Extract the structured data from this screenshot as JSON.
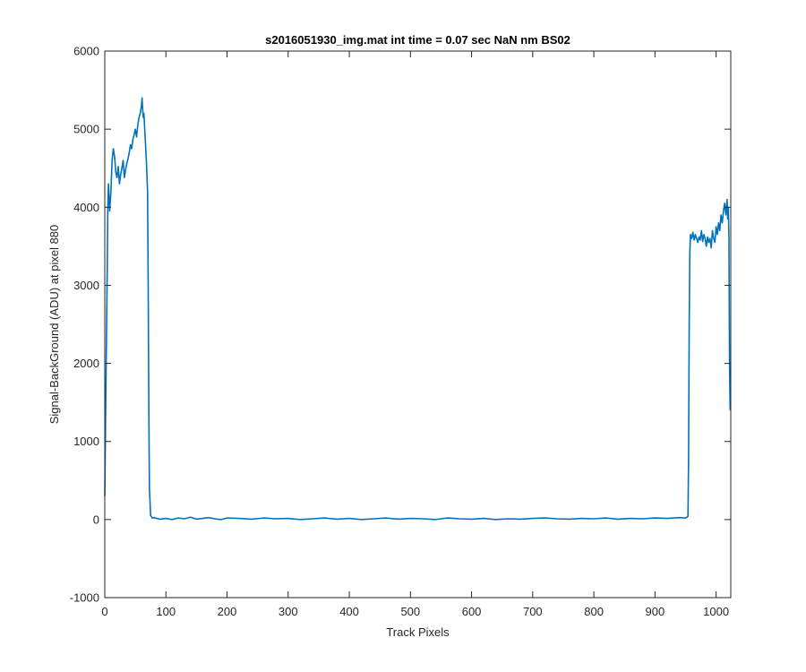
{
  "chart_data": {
    "type": "line",
    "title": "s2016051930_img.mat int time = 0.07 sec  NaN nm BS02",
    "xlabel": "Track Pixels",
    "ylabel": "Signal-BackGround (ADU) at pixel 880",
    "xlim": [
      0,
      1024
    ],
    "ylim": [
      -1000,
      6000
    ],
    "x_ticks": [
      0,
      100,
      200,
      300,
      400,
      500,
      600,
      700,
      800,
      900,
      1000
    ],
    "y_ticks": [
      -1000,
      0,
      1000,
      2000,
      3000,
      4000,
      5000,
      6000
    ],
    "grid": false,
    "series_color": "#0072BD",
    "series": [
      {
        "points": [
          [
            0,
            300
          ],
          [
            2,
            1800
          ],
          [
            4,
            3200
          ],
          [
            5,
            4000
          ],
          [
            6,
            4300
          ],
          [
            8,
            3950
          ],
          [
            10,
            4200
          ],
          [
            12,
            4600
          ],
          [
            14,
            4750
          ],
          [
            16,
            4650
          ],
          [
            18,
            4450
          ],
          [
            20,
            4380
          ],
          [
            22,
            4520
          ],
          [
            24,
            4300
          ],
          [
            26,
            4420
          ],
          [
            28,
            4500
          ],
          [
            30,
            4600
          ],
          [
            32,
            4380
          ],
          [
            34,
            4480
          ],
          [
            36,
            4560
          ],
          [
            38,
            4620
          ],
          [
            40,
            4700
          ],
          [
            42,
            4800
          ],
          [
            44,
            4750
          ],
          [
            46,
            4870
          ],
          [
            48,
            4930
          ],
          [
            50,
            5000
          ],
          [
            52,
            4900
          ],
          [
            54,
            5050
          ],
          [
            56,
            5150
          ],
          [
            58,
            5200
          ],
          [
            60,
            5300
          ],
          [
            61,
            5400
          ],
          [
            62,
            5250
          ],
          [
            63,
            5150
          ],
          [
            64,
            5200
          ],
          [
            66,
            4900
          ],
          [
            68,
            4600
          ],
          [
            70,
            4200
          ],
          [
            71,
            3000
          ],
          [
            72,
            1500
          ],
          [
            73,
            400
          ],
          [
            75,
            50
          ],
          [
            78,
            20
          ],
          [
            80,
            25
          ],
          [
            90,
            5
          ],
          [
            100,
            15
          ],
          [
            110,
            0
          ],
          [
            120,
            20
          ],
          [
            130,
            10
          ],
          [
            140,
            30
          ],
          [
            150,
            5
          ],
          [
            160,
            15
          ],
          [
            170,
            25
          ],
          [
            180,
            10
          ],
          [
            190,
            0
          ],
          [
            200,
            20
          ],
          [
            220,
            15
          ],
          [
            240,
            5
          ],
          [
            260,
            20
          ],
          [
            280,
            10
          ],
          [
            300,
            15
          ],
          [
            320,
            0
          ],
          [
            340,
            10
          ],
          [
            360,
            20
          ],
          [
            380,
            5
          ],
          [
            400,
            15
          ],
          [
            420,
            0
          ],
          [
            440,
            10
          ],
          [
            460,
            20
          ],
          [
            480,
            5
          ],
          [
            500,
            15
          ],
          [
            520,
            10
          ],
          [
            540,
            0
          ],
          [
            560,
            20
          ],
          [
            580,
            10
          ],
          [
            600,
            5
          ],
          [
            620,
            15
          ],
          [
            640,
            0
          ],
          [
            660,
            10
          ],
          [
            680,
            5
          ],
          [
            700,
            15
          ],
          [
            720,
            20
          ],
          [
            740,
            10
          ],
          [
            760,
            5
          ],
          [
            780,
            15
          ],
          [
            800,
            10
          ],
          [
            820,
            20
          ],
          [
            840,
            5
          ],
          [
            860,
            15
          ],
          [
            880,
            10
          ],
          [
            900,
            20
          ],
          [
            920,
            15
          ],
          [
            940,
            25
          ],
          [
            950,
            20
          ],
          [
            954,
            40
          ],
          [
            955,
            800
          ],
          [
            956,
            2500
          ],
          [
            957,
            3400
          ],
          [
            958,
            3650
          ],
          [
            960,
            3600
          ],
          [
            962,
            3680
          ],
          [
            964,
            3580
          ],
          [
            966,
            3650
          ],
          [
            968,
            3600
          ],
          [
            970,
            3550
          ],
          [
            972,
            3620
          ],
          [
            974,
            3580
          ],
          [
            976,
            3700
          ],
          [
            978,
            3560
          ],
          [
            980,
            3650
          ],
          [
            982,
            3600
          ],
          [
            984,
            3500
          ],
          [
            986,
            3620
          ],
          [
            988,
            3550
          ],
          [
            990,
            3600
          ],
          [
            992,
            3480
          ],
          [
            994,
            3700
          ],
          [
            996,
            3600
          ],
          [
            998,
            3550
          ],
          [
            1000,
            3750
          ],
          [
            1002,
            3650
          ],
          [
            1004,
            3800
          ],
          [
            1006,
            3700
          ],
          [
            1008,
            3900
          ],
          [
            1010,
            3800
          ],
          [
            1012,
            3950
          ],
          [
            1014,
            4050
          ],
          [
            1016,
            3900
          ],
          [
            1018,
            4100
          ],
          [
            1019,
            3850
          ],
          [
            1020,
            4000
          ],
          [
            1021,
            3600
          ],
          [
            1022,
            2000
          ],
          [
            1023,
            1400
          ]
        ]
      }
    ]
  }
}
